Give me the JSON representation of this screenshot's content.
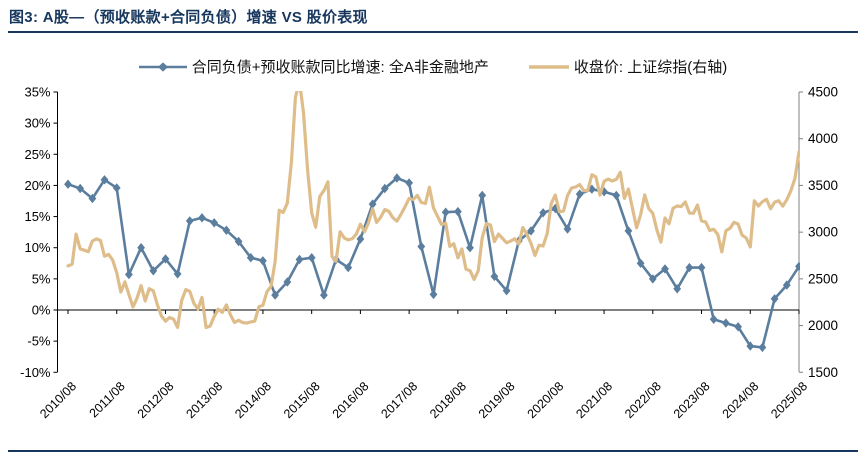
{
  "page": {
    "title": "图3:  A股—（预收账款+合同负债）增速 VS 股价表现"
  },
  "chart_data": {
    "type": "line",
    "title": "A股—（预收账款+合同负债）增速 VS 股价表现",
    "legend_position": "top",
    "grid": "off",
    "x_labels": [
      "2010/08",
      "2011/08",
      "2012/08",
      "2013/08",
      "2014/08",
      "2015/08",
      "2016/08",
      "2017/08",
      "2018/08",
      "2019/08",
      "2020/08",
      "2021/08",
      "2022/08",
      "2023/08",
      "2024/08",
      "2025/08"
    ],
    "left_axis": {
      "unit": "%",
      "min": -10,
      "max": 35,
      "tick_values": [
        35,
        30,
        25,
        20,
        15,
        10,
        5,
        0,
        -5,
        -10
      ],
      "tick_labels": [
        "35%",
        "30%",
        "25%",
        "20%",
        "15%",
        "10%",
        "5%",
        "0%",
        "-5%",
        "-10%"
      ]
    },
    "right_axis": {
      "min": 1500,
      "max": 4500,
      "tick_values": [
        4500,
        4000,
        3500,
        3000,
        2500,
        2000,
        1500
      ],
      "tick_labels": [
        "4500",
        "4000",
        "3500",
        "3000",
        "2500",
        "2000",
        "1500"
      ]
    },
    "series": [
      {
        "name": "合同负债+预收账款同比增速: 全A非金融地产",
        "axis": "left",
        "unit": "%",
        "color": "#5B7E9E",
        "marker": "diamond",
        "frequency": "quarterly",
        "start": "2010/08",
        "end": "2025/08",
        "values": [
          20.2,
          19.5,
          17.9,
          20.9,
          19.6,
          5.7,
          10.0,
          6.3,
          8.2,
          5.8,
          14.3,
          14.8,
          14.0,
          12.8,
          11.0,
          8.4,
          7.9,
          2.4,
          4.5,
          8.1,
          8.4,
          2.4,
          8.1,
          6.8,
          11.4,
          17.0,
          19.5,
          21.2,
          20.4,
          10.2,
          2.5,
          15.7,
          15.8,
          10.0,
          18.4,
          5.4,
          3.1,
          11.1,
          12.7,
          15.6,
          16.3,
          13.0,
          18.6,
          19.4,
          19.0,
          18.4,
          12.7,
          7.5,
          5.0,
          6.6,
          3.4,
          6.8,
          6.8,
          -1.5,
          -2.1,
          -2.7,
          -5.8,
          -6.0,
          1.8,
          4.0,
          7.0
        ]
      },
      {
        "name": "收盘价: 上证综指(右轴)",
        "axis": "right",
        "unit": "points",
        "color": "#DEBD8A",
        "marker": "none",
        "frequency": "monthly",
        "start": "2010/08",
        "end": "2025/08",
        "values": [
          2639,
          2656,
          2979,
          2820,
          2808,
          2790,
          2905,
          2928,
          2911,
          2743,
          2762,
          2701,
          2567,
          2359,
          2468,
          2333,
          2199,
          2293,
          2428,
          2263,
          2396,
          2372,
          2225,
          2104,
          2047,
          2086,
          2068,
          1980,
          2269,
          2385,
          2366,
          2237,
          2177,
          2301,
          1979,
          1994,
          2098,
          2175,
          2141,
          2221,
          2116,
          2033,
          2056,
          2033,
          2026,
          2039,
          2048,
          2201,
          2217,
          2364,
          2420,
          2683,
          3235,
          3210,
          3310,
          3748,
          4442,
          4612,
          4277,
          3664,
          3206,
          3053,
          3383,
          3445,
          3539,
          2738,
          2688,
          3004,
          2938,
          2917,
          2930,
          2979,
          3085,
          3005,
          3100,
          3250,
          3104,
          3159,
          3242,
          3223,
          3155,
          3117,
          3192,
          3273,
          3361,
          3349,
          3393,
          3317,
          3307,
          3481,
          3259,
          3169,
          3082,
          3095,
          2847,
          2876,
          2725,
          2821,
          2603,
          2588,
          2494,
          2585,
          2941,
          3091,
          3078,
          2899,
          2979,
          2933,
          2886,
          2905,
          2929,
          2872,
          3050,
          2977,
          2880,
          2750,
          2860,
          2852,
          2985,
          3310,
          3396,
          3218,
          3225,
          3392,
          3473,
          3483,
          3509,
          3442,
          3447,
          3615,
          3591,
          3397,
          3544,
          3568,
          3547,
          3564,
          3640,
          3361,
          3462,
          3252,
          3047,
          3186,
          3399,
          3253,
          3202,
          3024,
          2893,
          3151,
          3089,
          3256,
          3280,
          3273,
          3323,
          3205,
          3202,
          3291,
          3120,
          3110,
          3019,
          3030,
          2975,
          2789,
          3015,
          3041,
          3105,
          3087,
          2967,
          2938,
          2842,
          3336,
          3280,
          3326,
          3352,
          3250,
          3321,
          3336,
          3279,
          3347,
          3444,
          3573,
          3858
        ]
      }
    ]
  }
}
